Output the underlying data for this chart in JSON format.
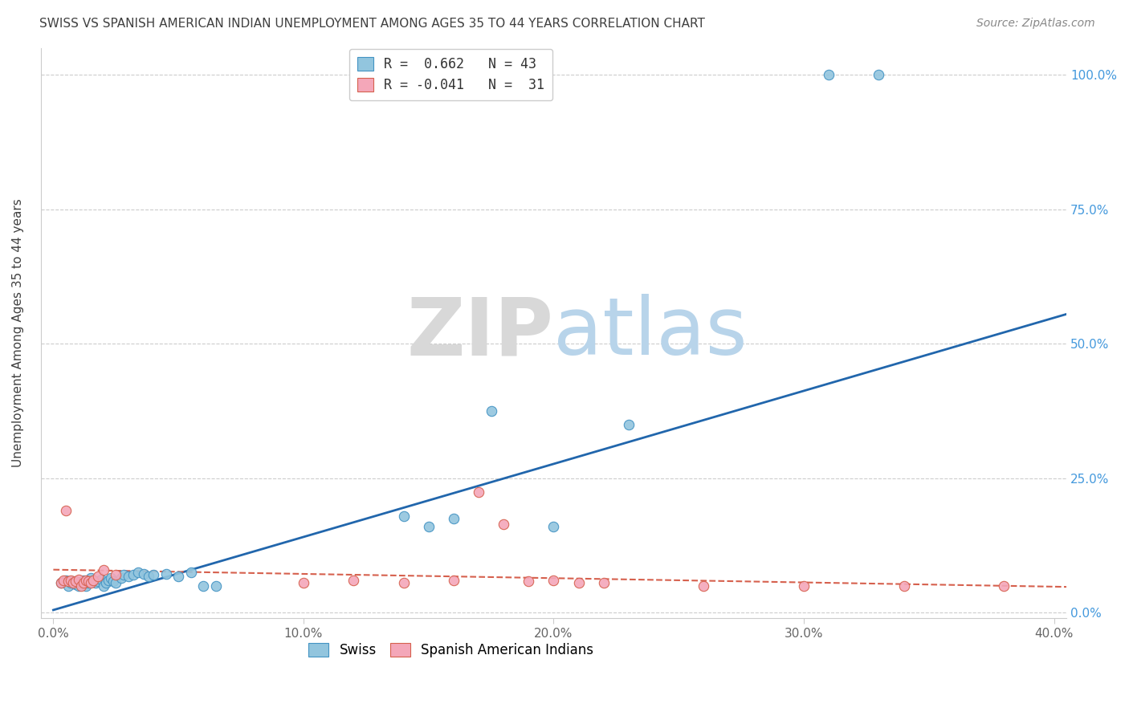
{
  "title": "SWISS VS SPANISH AMERICAN INDIAN UNEMPLOYMENT AMONG AGES 35 TO 44 YEARS CORRELATION CHART",
  "source": "Source: ZipAtlas.com",
  "ylabel": "Unemployment Among Ages 35 to 44 years",
  "xlim": [
    -0.005,
    0.405
  ],
  "ylim": [
    -0.01,
    1.05
  ],
  "xticks": [
    0.0,
    0.1,
    0.2,
    0.3,
    0.4
  ],
  "yticks": [
    0.0,
    0.25,
    0.5,
    0.75,
    1.0
  ],
  "xticklabels": [
    "0.0%",
    "10.0%",
    "20.0%",
    "30.0%",
    "40.0%"
  ],
  "yticklabels_right": [
    "0.0%",
    "25.0%",
    "50.0%",
    "75.0%",
    "100.0%"
  ],
  "watermark_zip": "ZIP",
  "watermark_atlas": "atlas",
  "swiss_color": "#92c5de",
  "swiss_edge_color": "#4393c3",
  "spanish_color": "#f4a7b9",
  "spanish_edge_color": "#d6604d",
  "trend_blue_color": "#2166ac",
  "trend_pink_color": "#d6604d",
  "legend_line1": "R =  0.662   N = 43",
  "legend_line2": "R = -0.041   N =  31",
  "swiss_x": [
    0.003,
    0.005,
    0.006,
    0.007,
    0.008,
    0.009,
    0.01,
    0.011,
    0.012,
    0.013,
    0.014,
    0.015,
    0.016,
    0.017,
    0.018,
    0.019,
    0.02,
    0.021,
    0.022,
    0.023,
    0.024,
    0.025,
    0.027,
    0.028,
    0.03,
    0.032,
    0.034,
    0.036,
    0.038,
    0.04,
    0.045,
    0.05,
    0.055,
    0.06,
    0.065,
    0.14,
    0.15,
    0.16,
    0.175,
    0.2,
    0.23,
    0.31,
    0.33
  ],
  "swiss_y": [
    0.055,
    0.06,
    0.05,
    0.055,
    0.058,
    0.052,
    0.05,
    0.055,
    0.06,
    0.05,
    0.055,
    0.065,
    0.06,
    0.055,
    0.058,
    0.062,
    0.05,
    0.055,
    0.06,
    0.065,
    0.058,
    0.055,
    0.065,
    0.07,
    0.068,
    0.07,
    0.075,
    0.072,
    0.068,
    0.07,
    0.072,
    0.068,
    0.075,
    0.05,
    0.05,
    0.18,
    0.16,
    0.175,
    0.375,
    0.16,
    0.35,
    1.0,
    1.0
  ],
  "spanish_x": [
    0.003,
    0.004,
    0.005,
    0.006,
    0.007,
    0.008,
    0.009,
    0.01,
    0.011,
    0.012,
    0.013,
    0.014,
    0.015,
    0.016,
    0.018,
    0.02,
    0.025,
    0.1,
    0.12,
    0.14,
    0.16,
    0.2,
    0.22,
    0.26,
    0.3,
    0.34,
    0.38,
    0.17,
    0.18,
    0.19,
    0.21
  ],
  "spanish_y": [
    0.055,
    0.06,
    0.19,
    0.058,
    0.06,
    0.055,
    0.058,
    0.062,
    0.05,
    0.055,
    0.06,
    0.058,
    0.055,
    0.06,
    0.068,
    0.08,
    0.07,
    0.055,
    0.06,
    0.055,
    0.06,
    0.06,
    0.055,
    0.05,
    0.05,
    0.05,
    0.05,
    0.225,
    0.165,
    0.058,
    0.055
  ],
  "blue_trend_x": [
    0.0,
    0.405
  ],
  "blue_trend_y": [
    0.005,
    0.555
  ],
  "pink_trend_x": [
    0.0,
    0.405
  ],
  "pink_trend_y": [
    0.08,
    0.048
  ],
  "background_color": "#ffffff",
  "grid_color": "#cccccc",
  "title_color": "#404040",
  "axis_tick_color": "#666666",
  "right_ytick_color": "#4499dd",
  "marker_size": 80
}
